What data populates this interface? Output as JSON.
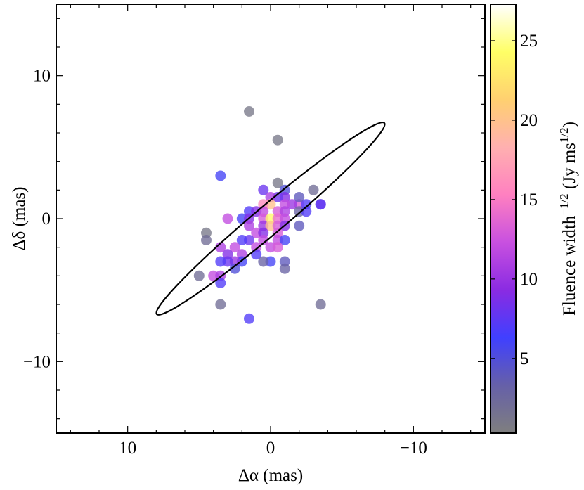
{
  "chart_data": {
    "type": "scatter",
    "xlabel": "Δα (mas)",
    "ylabel": "Δδ (mas)",
    "xlim": [
      15,
      -15
    ],
    "ylim": [
      -15,
      15
    ],
    "x_inverted": true,
    "xticks": [
      {
        "value": 10,
        "label": "10"
      },
      {
        "value": 0,
        "label": "0"
      },
      {
        "value": -10,
        "label": "−10"
      }
    ],
    "yticks": [
      {
        "value": 10,
        "label": "10"
      },
      {
        "value": 0,
        "label": "0"
      },
      {
        "value": -10,
        "label": "−10"
      }
    ],
    "grid": false,
    "colorbar": {
      "label": "Fluence width",
      "label_superscript": "−1/2",
      "label_units_prefix": " (Jy ms",
      "label_units_superscript": "1/2",
      "label_units_suffix": ")",
      "range": [
        0.3,
        27.3
      ],
      "ticks": [
        {
          "value": 5,
          "label": "5"
        },
        {
          "value": 10,
          "label": "10"
        },
        {
          "value": 15,
          "label": "15"
        },
        {
          "value": 20,
          "label": "20"
        },
        {
          "value": 25,
          "label": "25"
        }
      ],
      "colormap": [
        "#7f7f7f",
        "#6660a8",
        "#4040ff",
        "#8a2be2",
        "#c850e0",
        "#ff80c0",
        "#ffb0b0",
        "#ffd070",
        "#ffff66",
        "#ffffff"
      ]
    },
    "ellipse": {
      "center": [
        0,
        0
      ],
      "semi_major": 10.4,
      "semi_minor": 1.0,
      "angle_deg": 40
    },
    "points": [
      {
        "x": 1.5,
        "y": 7.5,
        "c": 1
      },
      {
        "x": -0.5,
        "y": 5.5,
        "c": 1
      },
      {
        "x": 3.5,
        "y": 3.0,
        "c": 6
      },
      {
        "x": -3.0,
        "y": 2.0,
        "c": 2
      },
      {
        "x": -0.5,
        "y": 2.5,
        "c": 1
      },
      {
        "x": -1.0,
        "y": 2.0,
        "c": 5
      },
      {
        "x": 0.5,
        "y": 2.0,
        "c": 8
      },
      {
        "x": -1.0,
        "y": 1.5,
        "c": 9
      },
      {
        "x": -0.5,
        "y": 1.5,
        "c": 8
      },
      {
        "x": 0.0,
        "y": 1.5,
        "c": 11
      },
      {
        "x": -2.0,
        "y": 1.0,
        "c": 13
      },
      {
        "x": -1.5,
        "y": 1.0,
        "c": 10
      },
      {
        "x": -1.0,
        "y": 1.0,
        "c": 12
      },
      {
        "x": 0.0,
        "y": 1.0,
        "c": 20
      },
      {
        "x": 0.5,
        "y": 1.0,
        "c": 16
      },
      {
        "x": -3.5,
        "y": 1.0,
        "c": 6
      },
      {
        "x": -2.5,
        "y": 1.0,
        "c": 7
      },
      {
        "x": 1.5,
        "y": 0.5,
        "c": 7
      },
      {
        "x": 1.0,
        "y": 0.5,
        "c": 9
      },
      {
        "x": 0.5,
        "y": 0.5,
        "c": 12
      },
      {
        "x": -0.5,
        "y": 0.5,
        "c": 13
      },
      {
        "x": -1.0,
        "y": 0.5,
        "c": 11
      },
      {
        "x": -2.0,
        "y": 0.5,
        "c": 3
      },
      {
        "x": -2.5,
        "y": 0.5,
        "c": 7
      },
      {
        "x": 3.0,
        "y": 0.0,
        "c": 12
      },
      {
        "x": 2.0,
        "y": 0.0,
        "c": 6
      },
      {
        "x": 1.5,
        "y": 0.0,
        "c": 9
      },
      {
        "x": 0.5,
        "y": 0.0,
        "c": 13
      },
      {
        "x": 0.0,
        "y": 0.0,
        "c": 24
      },
      {
        "x": -0.5,
        "y": 0.0,
        "c": 14
      },
      {
        "x": -1.0,
        "y": 0.0,
        "c": 12
      },
      {
        "x": 1.5,
        "y": -0.5,
        "c": 11
      },
      {
        "x": 0.5,
        "y": -0.5,
        "c": 10
      },
      {
        "x": 0.0,
        "y": -0.5,
        "c": 20
      },
      {
        "x": -0.5,
        "y": -0.5,
        "c": 13
      },
      {
        "x": -1.0,
        "y": -0.5,
        "c": 9
      },
      {
        "x": -2.0,
        "y": -0.5,
        "c": 4
      },
      {
        "x": 1.0,
        "y": -1.0,
        "c": 12
      },
      {
        "x": 0.5,
        "y": -1.0,
        "c": 9
      },
      {
        "x": -0.5,
        "y": -1.0,
        "c": 13
      },
      {
        "x": 1.5,
        "y": -1.5,
        "c": 8
      },
      {
        "x": 0.5,
        "y": -1.5,
        "c": 12
      },
      {
        "x": -0.5,
        "y": -1.5,
        "c": 12
      },
      {
        "x": -1.0,
        "y": -1.5,
        "c": 6
      },
      {
        "x": 1.0,
        "y": -2.0,
        "c": 12
      },
      {
        "x": 0.0,
        "y": -2.0,
        "c": 12
      },
      {
        "x": -0.5,
        "y": -2.0,
        "c": 13
      },
      {
        "x": 2.0,
        "y": -1.5,
        "c": 7
      },
      {
        "x": 2.0,
        "y": -2.5,
        "c": 11
      },
      {
        "x": 2.5,
        "y": -2.0,
        "c": 12
      },
      {
        "x": 2.0,
        "y": -3.0,
        "c": 6
      },
      {
        "x": 2.5,
        "y": -3.0,
        "c": 10
      },
      {
        "x": 3.0,
        "y": -2.5,
        "c": 9
      },
      {
        "x": 3.5,
        "y": -2.0,
        "c": 11
      },
      {
        "x": 2.5,
        "y": -3.5,
        "c": 5
      },
      {
        "x": 3.0,
        "y": -3.0,
        "c": 8
      },
      {
        "x": 3.5,
        "y": -3.0,
        "c": 7
      },
      {
        "x": 4.5,
        "y": -1.0,
        "c": 1
      },
      {
        "x": 4.5,
        "y": -1.5,
        "c": 2
      },
      {
        "x": 5.0,
        "y": -4.0,
        "c": 2
      },
      {
        "x": 4.0,
        "y": -4.0,
        "c": 12
      },
      {
        "x": 3.5,
        "y": -4.0,
        "c": 11
      },
      {
        "x": 3.5,
        "y": -4.5,
        "c": 7
      },
      {
        "x": 3.5,
        "y": -6.0,
        "c": 2
      },
      {
        "x": 1.5,
        "y": -7.0,
        "c": 7
      },
      {
        "x": -3.5,
        "y": -6.0,
        "c": 2
      },
      {
        "x": -1.0,
        "y": -3.0,
        "c": 4
      },
      {
        "x": -1.0,
        "y": -3.5,
        "c": 3
      },
      {
        "x": 0.0,
        "y": -3.0,
        "c": 6
      },
      {
        "x": 1.0,
        "y": -2.5,
        "c": 7
      },
      {
        "x": 0.5,
        "y": -3.0,
        "c": 3
      },
      {
        "x": -2.0,
        "y": 1.5,
        "c": 4
      },
      {
        "x": -3.5,
        "y": 1.0,
        "c": 8
      }
    ]
  }
}
